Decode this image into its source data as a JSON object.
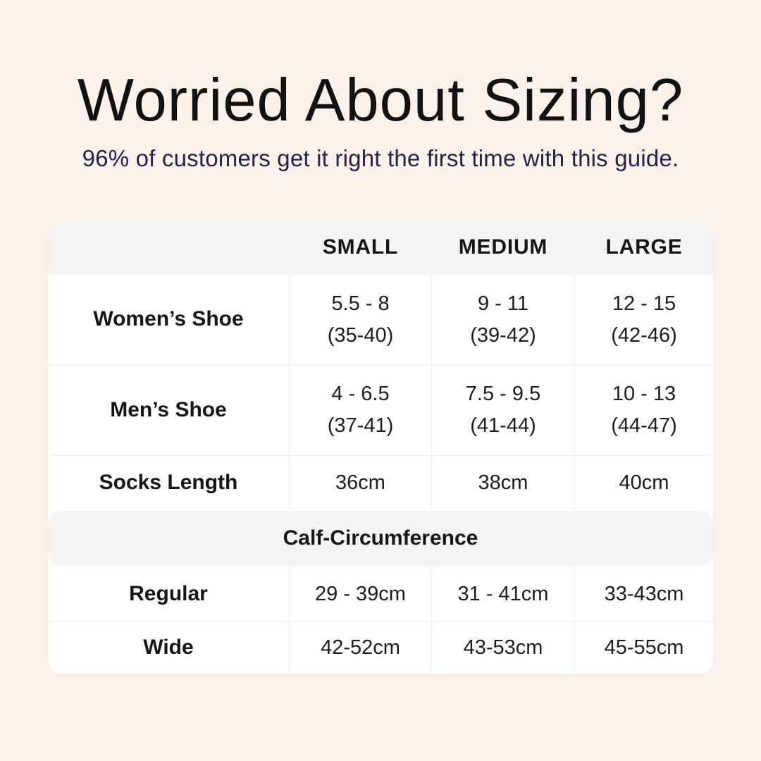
{
  "page": {
    "background_color": "#fdf2ea",
    "title_color": "#121212",
    "subtitle_color": "#23234a"
  },
  "header": {
    "title": "Worried About Sizing?",
    "subtitle": "96% of customers get it right the first time with this guide."
  },
  "table": {
    "columns": [
      "",
      "SMALL",
      "MEDIUM",
      "LARGE"
    ],
    "rows": [
      {
        "label": "Women’s Shoe",
        "c": [
          [
            "5.5 - 8",
            "(35-40)"
          ],
          [
            "9 - 11",
            "(39-42)"
          ],
          [
            "12 - 15",
            "(42-46)"
          ]
        ]
      },
      {
        "label": "Men’s Shoe",
        "c": [
          [
            "4 - 6.5",
            "(37-41)"
          ],
          [
            "7.5 - 9.5",
            "(41-44)"
          ],
          [
            "10 - 13",
            "(44-47)"
          ]
        ]
      },
      {
        "label": "Socks Length",
        "c": [
          [
            "36cm"
          ],
          [
            "38cm"
          ],
          [
            "40cm"
          ]
        ]
      }
    ],
    "section_header": "Calf-Circumference",
    "rows_calf": [
      {
        "label": "Regular",
        "c": [
          [
            "29 - 39cm"
          ],
          [
            "31 - 41cm"
          ],
          [
            "33-43cm"
          ]
        ]
      },
      {
        "label": "Wide",
        "c": [
          [
            "42-52cm"
          ],
          [
            "43-53cm"
          ],
          [
            "45-55cm"
          ]
        ]
      }
    ],
    "header_bg": "#f4f4f2",
    "card_bg": "#ffffff",
    "divider_color": "#ebebe9"
  },
  "chart_data": {
    "type": "table",
    "title": "Worried About Sizing?",
    "subtitle": "96% of customers get it right the first time with this guide.",
    "columns": [
      "",
      "SMALL",
      "MEDIUM",
      "LARGE"
    ],
    "rows": [
      [
        "Women’s Shoe",
        "5.5 - 8 (35-40)",
        "9 - 11 (39-42)",
        "12 - 15 (42-46)"
      ],
      [
        "Men’s Shoe",
        "4 - 6.5 (37-41)",
        "7.5 - 9.5 (41-44)",
        "10 - 13 (44-47)"
      ],
      [
        "Socks Length",
        "36cm",
        "38cm",
        "40cm"
      ],
      [
        "Calf-Circumference",
        "",
        "",
        ""
      ],
      [
        "Regular",
        "29 - 39cm",
        "31 - 41cm",
        "33-43cm"
      ],
      [
        "Wide",
        "42-52cm",
        "43-53cm",
        "45-55cm"
      ]
    ],
    "layout_hints": {
      "section_row_index": 3,
      "section_style": "full-width gray rounded band",
      "header_style": "gray band, bold uppercase",
      "grid": "light gray dividers, rounded white card on peach background"
    }
  }
}
